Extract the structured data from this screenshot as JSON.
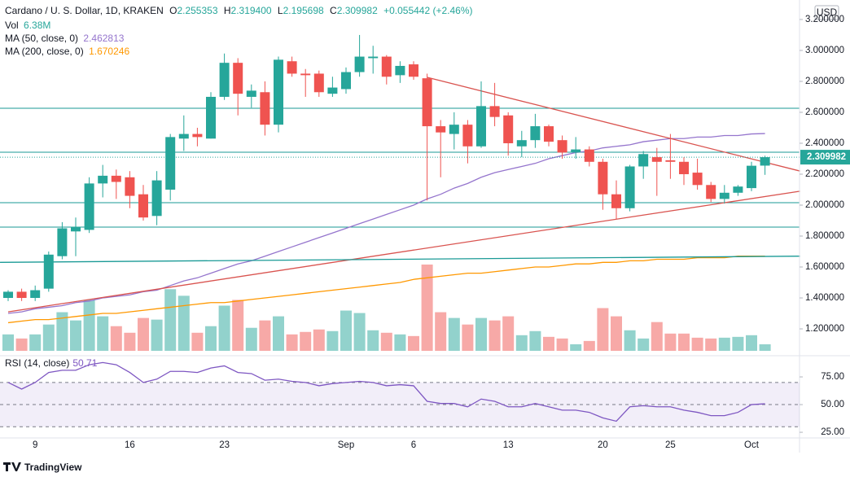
{
  "chart_data": {
    "type": "candlestick",
    "title": "Cardano / U. S. Dollar, 1D, KRAKEN",
    "ohlc_letters": {
      "open": "O",
      "high": "H",
      "low": "L",
      "close": "C"
    },
    "ohlc_labels": {
      "open": "2.255353",
      "high": "2.319400",
      "low": "2.195698",
      "close": "2.309982"
    },
    "change_label": "+0.055442 (+2.46%)",
    "currency": "USD",
    "footer": "TradingView",
    "categories": [
      null,
      null,
      "9",
      null,
      null,
      null,
      null,
      null,
      null,
      "16",
      null,
      null,
      null,
      null,
      null,
      null,
      "23",
      null,
      null,
      null,
      null,
      null,
      null,
      null,
      null,
      "Sep",
      null,
      null,
      null,
      null,
      "6",
      null,
      null,
      null,
      null,
      null,
      null,
      "13",
      null,
      null,
      null,
      null,
      null,
      null,
      "20",
      null,
      null,
      null,
      null,
      "25",
      null,
      null,
      null,
      null,
      null,
      "Oct",
      null
    ],
    "candles": {
      "up_color": "#26a69a",
      "down_color": "#ef5350",
      "open": [
        1.4,
        1.44,
        1.4,
        1.46,
        1.67,
        1.83,
        1.84,
        2.14,
        2.19,
        2.18,
        2.07,
        1.93,
        2.1,
        2.43,
        2.46,
        2.43,
        2.7,
        2.92,
        2.7,
        2.73,
        2.52,
        2.93,
        2.85,
        2.85,
        2.72,
        2.75,
        2.86,
        2.95,
        2.96,
        2.84,
        2.91,
        2.82,
        2.51,
        2.46,
        2.52,
        2.38,
        2.64,
        2.58,
        2.38,
        2.42,
        2.51,
        2.42,
        2.34,
        2.36,
        2.28,
        2.07,
        1.98,
        2.25,
        2.31,
        2.29,
        2.28,
        2.21,
        2.13,
        2.04,
        2.08,
        2.11,
        2.255353
      ],
      "high": [
        1.45,
        1.46,
        1.48,
        1.7,
        1.89,
        1.92,
        2.18,
        2.26,
        2.23,
        2.22,
        2.13,
        2.22,
        2.46,
        2.58,
        2.5,
        2.73,
        2.98,
        2.95,
        2.78,
        2.8,
        2.96,
        2.96,
        2.88,
        2.87,
        2.83,
        2.89,
        3.1,
        3.03,
        2.97,
        2.93,
        2.93,
        2.85,
        2.55,
        2.6,
        2.55,
        2.8,
        2.79,
        2.6,
        2.48,
        2.59,
        2.52,
        2.45,
        2.44,
        2.38,
        2.3,
        2.16,
        2.26,
        2.35,
        2.37,
        2.46,
        2.31,
        2.3,
        2.15,
        2.13,
        2.13,
        2.28,
        2.3194
      ],
      "low": [
        1.38,
        1.38,
        1.38,
        1.44,
        1.65,
        1.67,
        1.82,
        2.05,
        2.04,
        1.98,
        1.9,
        1.87,
        2.03,
        2.35,
        2.38,
        2.43,
        2.68,
        2.58,
        2.63,
        2.45,
        2.47,
        2.83,
        2.7,
        2.7,
        2.7,
        2.72,
        2.83,
        2.85,
        2.78,
        2.79,
        2.81,
        2.03,
        2.18,
        2.36,
        2.27,
        2.37,
        2.51,
        2.32,
        2.31,
        2.37,
        2.38,
        2.3,
        2.3,
        2.25,
        1.97,
        1.91,
        1.96,
        2.17,
        2.06,
        2.17,
        2.13,
        2.1,
        2.02,
        2.01,
        2.06,
        2.09,
        2.195698
      ],
      "close": [
        1.44,
        1.4,
        1.45,
        1.68,
        1.85,
        1.86,
        2.14,
        2.19,
        2.15,
        2.06,
        1.92,
        2.16,
        2.44,
        2.46,
        2.44,
        2.7,
        2.92,
        2.72,
        2.74,
        2.52,
        2.94,
        2.85,
        2.84,
        2.73,
        2.76,
        2.86,
        2.96,
        2.96,
        2.83,
        2.9,
        2.83,
        2.51,
        2.47,
        2.52,
        2.38,
        2.64,
        2.57,
        2.4,
        2.42,
        2.51,
        2.41,
        2.34,
        2.36,
        2.28,
        2.07,
        1.98,
        2.25,
        2.33,
        2.28,
        2.28,
        2.2,
        2.13,
        2.04,
        2.08,
        2.12,
        2.25454,
        2.309982
      ]
    },
    "volume": {
      "name": "Vol",
      "label": "6.38M",
      "values": [
        16,
        12,
        16,
        25.6,
        37.6,
        29.6,
        49.6,
        33.6,
        24,
        17.6,
        32,
        30.4,
        60,
        53.6,
        17.6,
        24,
        44,
        49.6,
        22.4,
        29.6,
        33.6,
        16,
        18.4,
        20.8,
        19.2,
        39.2,
        36.8,
        20,
        17.6,
        16,
        14.4,
        84,
        37.6,
        32,
        25.6,
        32,
        29.6,
        33.6,
        15.2,
        19.2,
        13.6,
        12,
        6.4,
        9.6,
        41.6,
        33.6,
        20,
        12,
        28,
        16.8,
        16.8,
        12.8,
        12,
        12.8,
        13.6,
        15.2,
        6.38
      ]
    },
    "ma50": {
      "name": "MA (50, close, 0)",
      "color": "#9575cd",
      "values": [
        1.3,
        1.31,
        1.33,
        1.34,
        1.35,
        1.37,
        1.38,
        1.4,
        1.41,
        1.42,
        1.44,
        1.45,
        1.48,
        1.51,
        1.53,
        1.56,
        1.59,
        1.62,
        1.64,
        1.67,
        1.7,
        1.73,
        1.76,
        1.79,
        1.82,
        1.85,
        1.88,
        1.91,
        1.94,
        1.97,
        2.0,
        2.04,
        2.07,
        2.11,
        2.14,
        2.18,
        2.21,
        2.23,
        2.25,
        2.27,
        2.3,
        2.32,
        2.34,
        2.35,
        2.37,
        2.38,
        2.39,
        2.41,
        2.42,
        2.43,
        2.43,
        2.44,
        2.44,
        2.45,
        2.45,
        2.46,
        2.462813
      ]
    },
    "ma200": {
      "name": "MA (200, close, 0)",
      "color": "#ff9800",
      "values": [
        1.24,
        1.25,
        1.26,
        1.26,
        1.27,
        1.28,
        1.29,
        1.3,
        1.3,
        1.31,
        1.32,
        1.33,
        1.34,
        1.35,
        1.36,
        1.37,
        1.37,
        1.38,
        1.39,
        1.4,
        1.41,
        1.42,
        1.43,
        1.44,
        1.45,
        1.46,
        1.47,
        1.48,
        1.49,
        1.5,
        1.52,
        1.53,
        1.54,
        1.55,
        1.56,
        1.56,
        1.57,
        1.58,
        1.59,
        1.6,
        1.6,
        1.61,
        1.62,
        1.62,
        1.63,
        1.63,
        1.64,
        1.64,
        1.65,
        1.65,
        1.65,
        1.66,
        1.66,
        1.66,
        1.67,
        1.67,
        1.670246
      ]
    },
    "levels": [
      2.626,
      2.342,
      2.016,
      1.858
    ],
    "levels_color": "#1a9a96",
    "trendlines": [
      {
        "from_index": 31,
        "from": 2.826,
        "to_index": 58.6,
        "to": 2.22,
        "color": "#d9534f"
      },
      {
        "from_index": 0,
        "from": 1.31,
        "to_index": 58.6,
        "to": 2.09,
        "color": "#d9534f"
      },
      {
        "from_index": -0.6,
        "from": 1.63,
        "to_index": 58.6,
        "to": 1.67,
        "color": "#1a9a96"
      }
    ],
    "ylim": [
      1.037,
      3.326
    ],
    "yticks": [
      {
        "value": 3.2,
        "label": "3.200000"
      },
      {
        "value": 3.0,
        "label": "3.000000"
      },
      {
        "value": 2.8,
        "label": "2.800000"
      },
      {
        "value": 2.6,
        "label": "2.600000"
      },
      {
        "value": 2.4,
        "label": "2.400000"
      },
      {
        "value": 2.2,
        "label": "2.200000"
      },
      {
        "value": 2.0,
        "label": "2.000000"
      },
      {
        "value": 1.8,
        "label": "1.800000"
      },
      {
        "value": 1.6,
        "label": "1.600000"
      },
      {
        "value": 1.4,
        "label": "1.400000"
      },
      {
        "value": 1.2,
        "label": "1.200000"
      }
    ],
    "grid": false,
    "rsi": {
      "name": "RSI (14, close)",
      "color": "#7e57c2",
      "values": [
        70,
        64,
        70,
        79,
        81,
        81,
        86,
        88,
        86,
        79,
        70,
        73,
        80,
        80,
        79,
        83,
        85,
        79,
        78,
        72,
        73,
        71,
        70,
        67,
        69,
        70,
        71,
        70,
        67,
        68,
        67,
        53,
        51,
        51,
        48,
        55,
        53,
        48,
        48,
        51,
        48,
        45,
        45,
        43,
        38,
        35,
        48,
        49,
        48,
        48,
        45,
        43,
        40,
        40,
        43,
        50,
        50.71
      ],
      "ylim": [
        19.9,
        93.4
      ],
      "yticks": [
        {
          "value": 75,
          "label": "75.00"
        },
        {
          "value": 50,
          "label": "50.00"
        },
        {
          "value": 25,
          "label": "25.00"
        }
      ],
      "upper_band": 70,
      "middle_band": 50,
      "lower_band": 30
    }
  }
}
